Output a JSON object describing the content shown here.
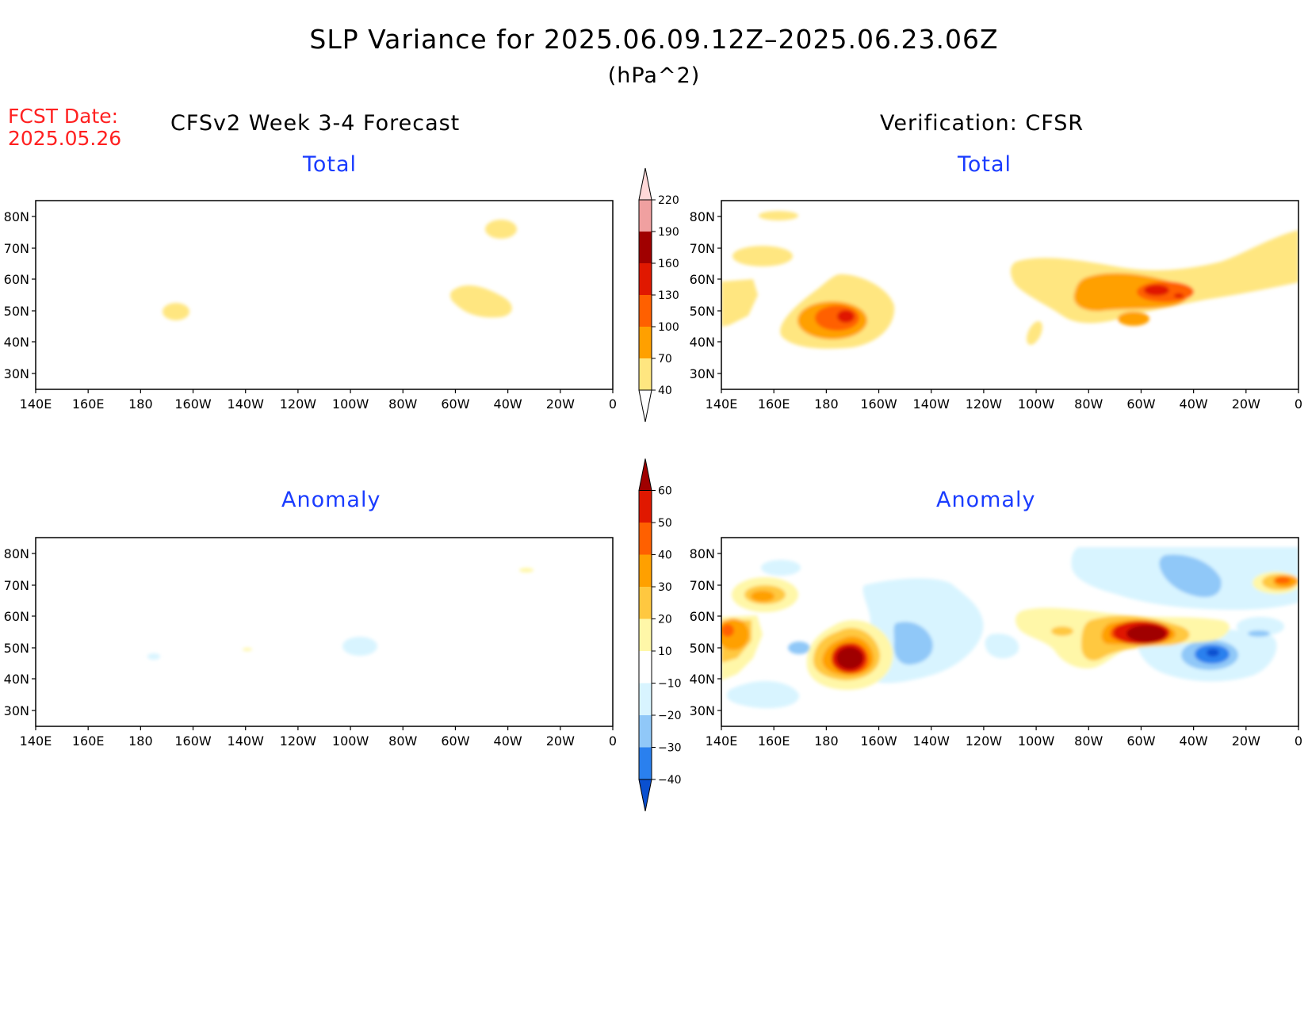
{
  "title": "SLP Variance for 2025.06.09.12Z–2025.06.23.06Z",
  "units": "(hPa^2)",
  "fcst_date_label": "FCST Date:",
  "fcst_date_value": "2025.05.26",
  "left_column_title": "CFSv2 Week 3-4 Forecast",
  "right_column_title": "Verification: CFSR",
  "panels": {
    "forecast_total": {
      "title": "Total"
    },
    "forecast_anomaly": {
      "title": "Anomaly"
    },
    "verification_total": {
      "title": "Total"
    },
    "verification_anomaly": {
      "title": "Anomaly"
    }
  },
  "lat_labels": [
    "80N",
    "70N",
    "60N",
    "50N",
    "40N",
    "30N"
  ],
  "lon_labels": [
    "140E",
    "160E",
    "180",
    "160W",
    "140W",
    "120W",
    "100W",
    "80W",
    "60W",
    "40W",
    "20W",
    "0"
  ],
  "total_colorbar": {
    "levels": [
      "40",
      "70",
      "100",
      "130",
      "160",
      "190",
      "220"
    ],
    "colors": [
      "#ffe680",
      "#ffa000",
      "#ff6000",
      "#e01800",
      "#a00000",
      "#f0a0a0",
      "#ffd8d8",
      "#fff0f0"
    ]
  },
  "anomaly_colorbar": {
    "levels": [
      "−40",
      "−30",
      "−20",
      "−10",
      "10",
      "20",
      "30",
      "40",
      "50",
      "60"
    ],
    "colors": [
      "#0a50d0",
      "#2a80ee",
      "#90c8f8",
      "#d8f4ff",
      "#ffffff",
      "#fff7a8",
      "#ffc840",
      "#ffa000",
      "#ff6000",
      "#e01800",
      "#a00000"
    ]
  }
}
